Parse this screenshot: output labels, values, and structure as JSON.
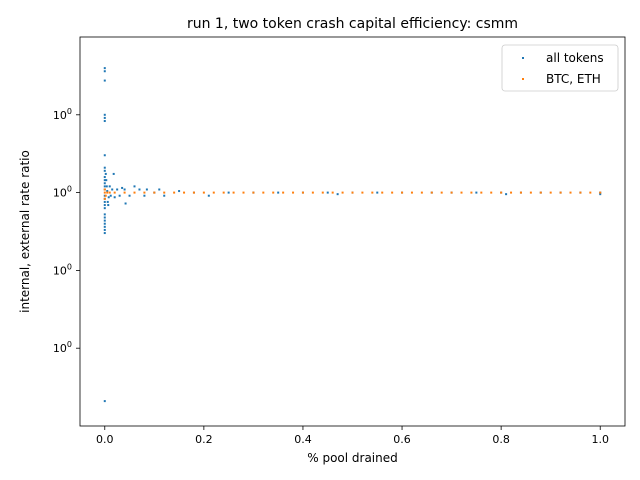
{
  "chart_data": {
    "type": "scatter",
    "title": "run 1, two token crash capital efficiency: csmm",
    "xlabel": "% pool drained",
    "ylabel": "internal, external rate ratio",
    "xlim": [
      -0.05,
      1.05
    ],
    "ylim": [
      0.25,
      1.5
    ],
    "x_ticks": [
      0.0,
      0.2,
      0.4,
      0.6,
      0.8,
      1.0
    ],
    "x_tick_labels": [
      "0.0",
      "0.2",
      "0.4",
      "0.6",
      "0.8",
      "1.0"
    ],
    "y_ticks": [
      0.5,
      0.75,
      1.0,
      1.25
    ],
    "y_tick_labels": [
      "10^0",
      "10^0",
      "10^0",
      "10^0"
    ],
    "legend_position": "top-right",
    "grid": false,
    "series": [
      {
        "name": "all tokens",
        "color": "#1f77b4",
        "points": [
          [
            0.0,
            1.4
          ],
          [
            0.0,
            1.39
          ],
          [
            0.0,
            1.36
          ],
          [
            0.0,
            1.25
          ],
          [
            0.0,
            1.24
          ],
          [
            0.0,
            1.23
          ],
          [
            0.0,
            1.12
          ],
          [
            0.0,
            1.08
          ],
          [
            0.0,
            1.07
          ],
          [
            0.0,
            1.05
          ],
          [
            0.0,
            1.04
          ],
          [
            0.0,
            1.03
          ],
          [
            0.0,
            1.02
          ],
          [
            0.0,
            1.01
          ],
          [
            0.0,
            0.99
          ],
          [
            0.0,
            0.98
          ],
          [
            0.0,
            0.97
          ],
          [
            0.0,
            0.96
          ],
          [
            0.0,
            0.95
          ],
          [
            0.0,
            0.93
          ],
          [
            0.0,
            0.92
          ],
          [
            0.0,
            0.91
          ],
          [
            0.0,
            0.9
          ],
          [
            0.0,
            0.89
          ],
          [
            0.0,
            0.88
          ],
          [
            0.0,
            0.87
          ],
          [
            0.0,
            0.33
          ],
          [
            0.002,
            1.06
          ],
          [
            0.003,
            1.04
          ],
          [
            0.004,
            1.02
          ],
          [
            0.005,
            1.005
          ],
          [
            0.006,
            0.97
          ],
          [
            0.007,
            0.96
          ],
          [
            0.008,
            0.985
          ],
          [
            0.01,
            1.02
          ],
          [
            0.012,
            0.99
          ],
          [
            0.015,
            1.01
          ],
          [
            0.018,
            1.06
          ],
          [
            0.02,
            0.985
          ],
          [
            0.025,
            1.01
          ],
          [
            0.03,
            0.99
          ],
          [
            0.035,
            1.015
          ],
          [
            0.04,
            1.01
          ],
          [
            0.042,
            0.965
          ],
          [
            0.05,
            0.99
          ],
          [
            0.06,
            1.02
          ],
          [
            0.07,
            1.01
          ],
          [
            0.08,
            0.99
          ],
          [
            0.085,
            1.01
          ],
          [
            0.1,
            1.0
          ],
          [
            0.11,
            1.01
          ],
          [
            0.12,
            0.99
          ],
          [
            0.15,
            1.005
          ],
          [
            0.18,
            1.0
          ],
          [
            0.21,
            0.99
          ],
          [
            0.25,
            1.0
          ],
          [
            0.3,
            1.0
          ],
          [
            0.35,
            1.0
          ],
          [
            0.4,
            1.0
          ],
          [
            0.45,
            1.0
          ],
          [
            0.47,
            0.995
          ],
          [
            0.5,
            1.0
          ],
          [
            0.55,
            1.0
          ],
          [
            0.6,
            1.0
          ],
          [
            0.66,
            1.0
          ],
          [
            0.7,
            1.0
          ],
          [
            0.75,
            1.0
          ],
          [
            0.8,
            1.0
          ],
          [
            0.81,
            0.995
          ],
          [
            0.84,
            1.0
          ],
          [
            0.88,
            1.0
          ],
          [
            0.92,
            1.0
          ],
          [
            0.96,
            1.0
          ],
          [
            1.0,
            1.0
          ],
          [
            1.0,
            0.995
          ]
        ]
      },
      {
        "name": "BTC, ETH",
        "color": "#ff7f0e",
        "points": [
          [
            0.0,
            0.98
          ],
          [
            0.0,
            1.0
          ],
          [
            0.0,
            1.01
          ],
          [
            0.002,
            0.99
          ],
          [
            0.005,
            1.0
          ],
          [
            0.01,
            1.0
          ],
          [
            0.02,
            1.0
          ],
          [
            0.04,
            1.0
          ],
          [
            0.06,
            1.0
          ],
          [
            0.08,
            1.0
          ],
          [
            0.1,
            1.0
          ],
          [
            0.12,
            1.0
          ],
          [
            0.14,
            1.0
          ],
          [
            0.16,
            1.0
          ],
          [
            0.18,
            1.0
          ],
          [
            0.2,
            1.0
          ],
          [
            0.22,
            1.0
          ],
          [
            0.24,
            1.0
          ],
          [
            0.26,
            1.0
          ],
          [
            0.28,
            1.0
          ],
          [
            0.3,
            1.0
          ],
          [
            0.32,
            1.0
          ],
          [
            0.34,
            1.0
          ],
          [
            0.36,
            1.0
          ],
          [
            0.38,
            1.0
          ],
          [
            0.4,
            1.0
          ],
          [
            0.42,
            1.0
          ],
          [
            0.44,
            1.0
          ],
          [
            0.46,
            1.0
          ],
          [
            0.48,
            1.0
          ],
          [
            0.5,
            1.0
          ],
          [
            0.52,
            1.0
          ],
          [
            0.54,
            1.0
          ],
          [
            0.56,
            1.0
          ],
          [
            0.58,
            1.0
          ],
          [
            0.6,
            1.0
          ],
          [
            0.62,
            1.0
          ],
          [
            0.64,
            1.0
          ],
          [
            0.66,
            1.0
          ],
          [
            0.68,
            1.0
          ],
          [
            0.7,
            1.0
          ],
          [
            0.72,
            1.0
          ],
          [
            0.74,
            1.0
          ],
          [
            0.76,
            1.0
          ],
          [
            0.78,
            1.0
          ],
          [
            0.8,
            1.0
          ],
          [
            0.82,
            1.0
          ],
          [
            0.84,
            1.0
          ],
          [
            0.86,
            1.0
          ],
          [
            0.88,
            1.0
          ],
          [
            0.9,
            1.0
          ],
          [
            0.92,
            1.0
          ],
          [
            0.94,
            1.0
          ],
          [
            0.96,
            1.0
          ],
          [
            0.98,
            1.0
          ],
          [
            1.0,
            1.0
          ]
        ]
      }
    ]
  }
}
